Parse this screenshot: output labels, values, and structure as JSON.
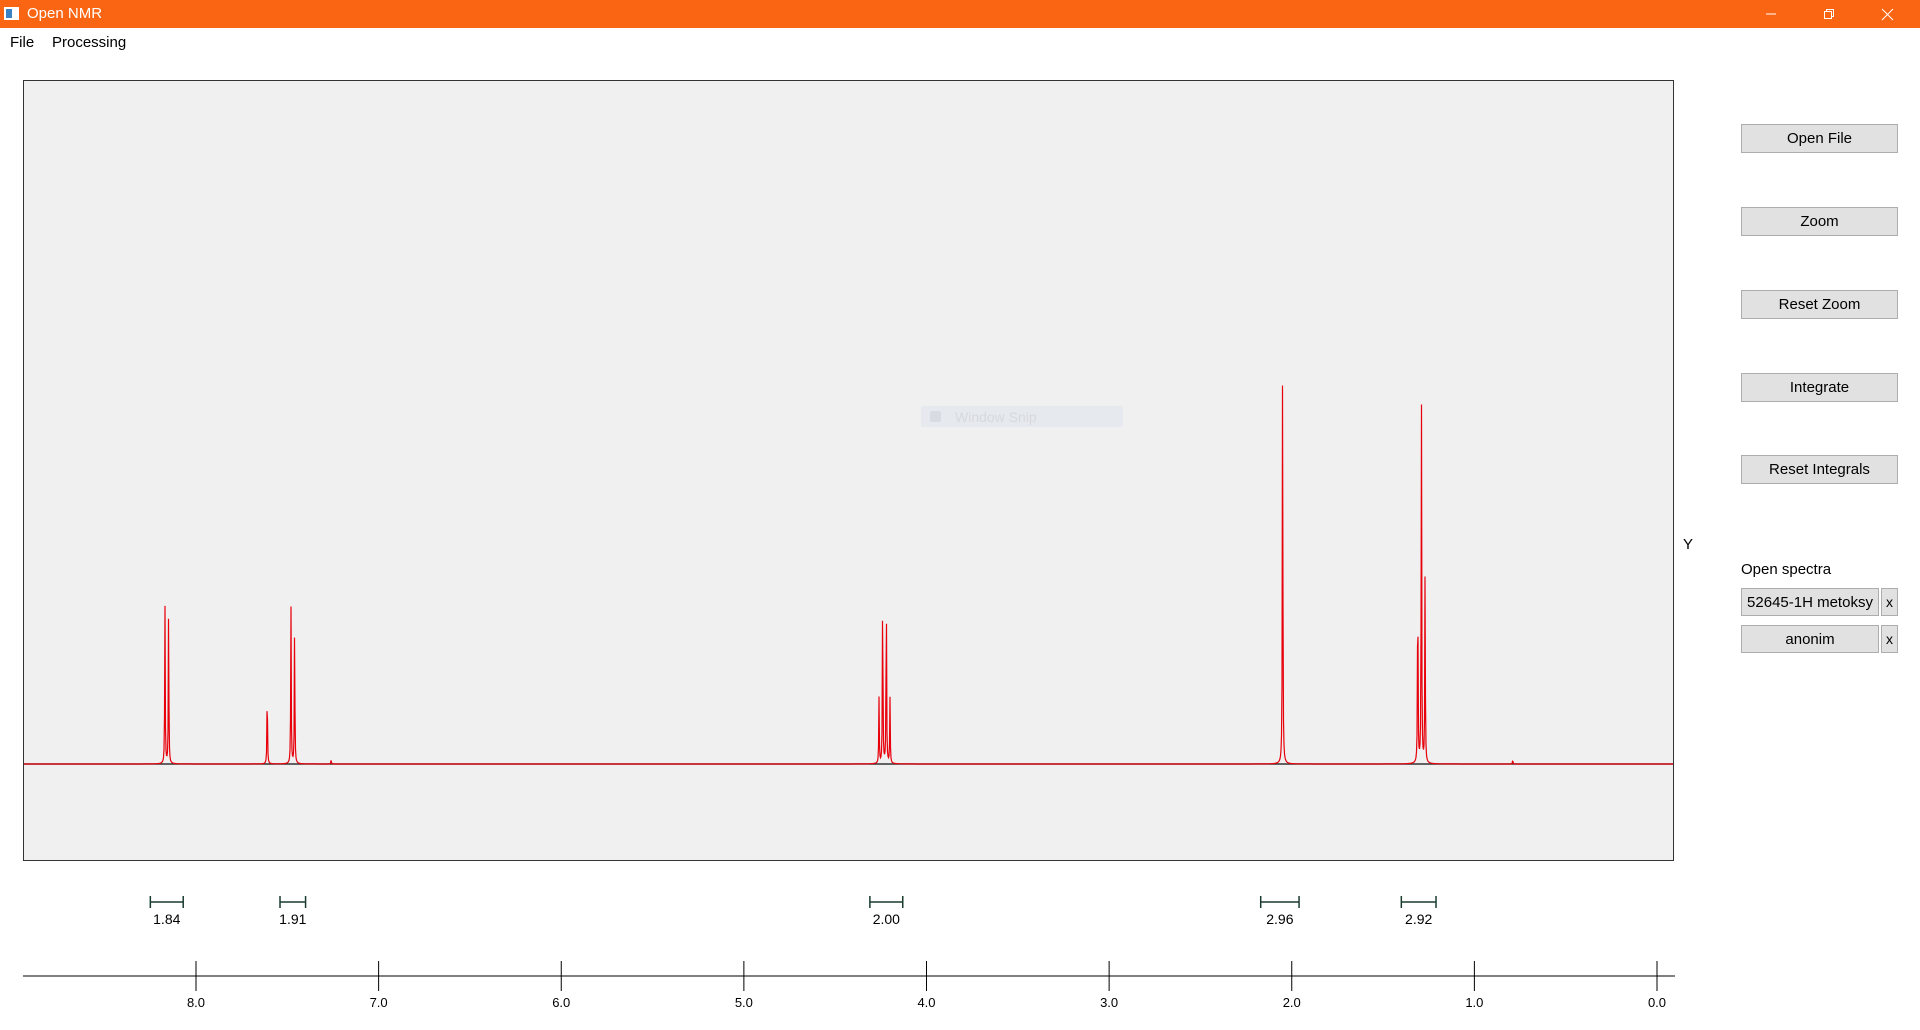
{
  "window": {
    "title": "Open NMR",
    "minimize_icon": "minimize-icon",
    "maximize_icon": "restore-icon",
    "close_icon": "close-icon"
  },
  "menu": {
    "file": "File",
    "processing": "Processing"
  },
  "watermark": "Window Snip",
  "buttons": {
    "open_file": "Open File",
    "zoom": "Zoom",
    "reset_zoom": "Reset Zoom",
    "integrate": "Integrate",
    "reset_integrals": "Reset Integrals"
  },
  "y_label": "Y",
  "spectra": {
    "title": "Open spectra",
    "items": [
      {
        "name": "52645-1H metoksy",
        "close": "x"
      },
      {
        "name": "anonim",
        "close": "x"
      }
    ]
  },
  "colors": {
    "titlebar": "#f96512",
    "spectrum": "#e8000b",
    "integral": "#1a3c2e"
  },
  "chart_data": {
    "type": "line",
    "xlabel": "",
    "ylabel": "Y",
    "xlim": [
      8.95,
      -0.1
    ],
    "x_reversed": true,
    "ticks": [
      "8.0",
      "7.0",
      "6.0",
      "5.0",
      "4.0",
      "3.0",
      "2.0",
      "1.0",
      "0.0"
    ],
    "tick_values": [
      8.0,
      7.0,
      6.0,
      5.0,
      4.0,
      3.0,
      2.0,
      1.0,
      0.0
    ],
    "peaks": [
      {
        "ppm": 8.17,
        "height": 0.365
      },
      {
        "ppm": 8.15,
        "height": 0.37
      },
      {
        "ppm": 7.61,
        "height": 0.19
      },
      {
        "ppm": 7.48,
        "height": 0.36
      },
      {
        "ppm": 7.46,
        "height": 0.33
      },
      {
        "ppm": 4.24,
        "height": 0.43
      },
      {
        "ppm": 4.22,
        "height": 0.43
      },
      {
        "ppm": 4.26,
        "height": 0.15
      },
      {
        "ppm": 4.2,
        "height": 0.15
      },
      {
        "ppm": 2.05,
        "height": 1.0
      },
      {
        "ppm": 1.31,
        "height": 0.47
      },
      {
        "ppm": 1.29,
        "height": 0.88
      },
      {
        "ppm": 1.27,
        "height": 0.44
      },
      {
        "ppm": 7.26,
        "height": 0.01
      },
      {
        "ppm": 0.79,
        "height": 0.01
      }
    ],
    "integrals": [
      {
        "from": 8.25,
        "to": 8.07,
        "label": "1.84"
      },
      {
        "from": 7.54,
        "to": 7.4,
        "label": "1.91"
      },
      {
        "from": 4.31,
        "to": 4.13,
        "label": "2.00"
      },
      {
        "from": 2.17,
        "to": 1.96,
        "label": "2.96"
      },
      {
        "from": 1.4,
        "to": 1.21,
        "label": "2.92"
      }
    ]
  }
}
